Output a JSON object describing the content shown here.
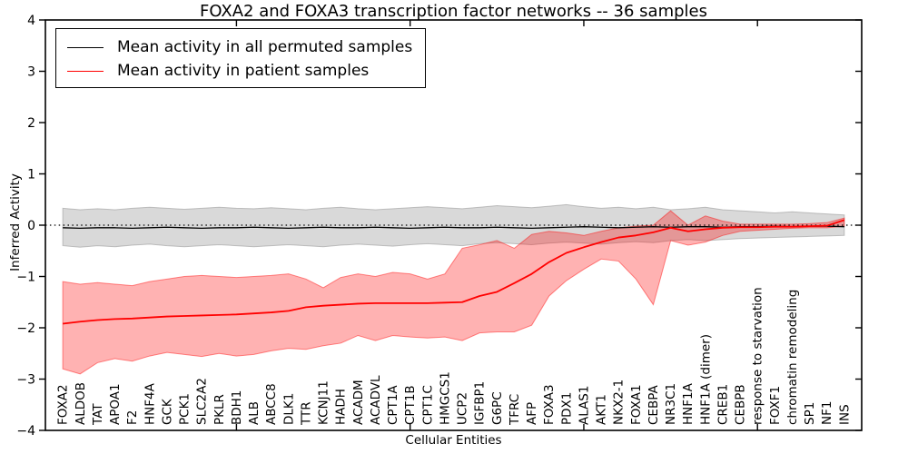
{
  "chart_data": {
    "type": "line",
    "title": "FOXA2 and FOXA3 transcription factor networks -- 36 samples",
    "xlabel": "Cellular Entities",
    "ylabel": "Inferred Activity",
    "ylim": [
      -4,
      4
    ],
    "xlim_points": 46,
    "grid": false,
    "legend_position": "upper left",
    "x_tick_rotation": 90,
    "reference_line": {
      "y": 0,
      "style": "dotted",
      "color": "#000000"
    },
    "yticks": [
      {
        "v": -4,
        "label": "−4"
      },
      {
        "v": -3,
        "label": "−3"
      },
      {
        "v": -2,
        "label": "−2"
      },
      {
        "v": -1,
        "label": "−1"
      },
      {
        "v": 0,
        "label": "0"
      },
      {
        "v": 1,
        "label": "1"
      },
      {
        "v": 2,
        "label": "2"
      },
      {
        "v": 3,
        "label": "3"
      },
      {
        "v": 4,
        "label": "4"
      }
    ],
    "categories": [
      "FOXA2",
      "ALDOB",
      "TAT",
      "APOA1",
      "F2",
      "HNF4A",
      "GCK",
      "PCK1",
      "SLC2A2",
      "PKLR",
      "BDH1",
      "ALB",
      "ABCC8",
      "DLK1",
      "TTR",
      "KCNJ11",
      "HADH",
      "ACADM",
      "ACADVL",
      "CPT1A",
      "CPT1B",
      "CPT1C",
      "HMGCS1",
      "UCP2",
      "IGFBP1",
      "G6PC",
      "TFRC",
      "AFP",
      "FOXA3",
      "PDX1",
      "ALAS1",
      "AKT1",
      "NKX2-1",
      "FOXA1",
      "CEBPA",
      "NR3C1",
      "HNF1A",
      "HNF1A (dimer)",
      "CREB1",
      "CEBPB",
      "response to starvation",
      "FOXF1",
      "chromatin remodeling",
      "SP1",
      "NF1",
      "INS"
    ],
    "series": [
      {
        "name": "Mean activity in all permuted samples",
        "color": "#000000",
        "line_width": 1.3,
        "band_color": "rgba(128,128,128,0.30)",
        "band_edge_color": "rgba(128,128,128,0.45)",
        "values": [
          -0.05,
          -0.06,
          -0.05,
          -0.05,
          -0.06,
          -0.05,
          -0.04,
          -0.05,
          -0.06,
          -0.05,
          -0.05,
          -0.04,
          -0.05,
          -0.06,
          -0.05,
          -0.04,
          -0.05,
          -0.05,
          -0.04,
          -0.05,
          -0.06,
          -0.05,
          -0.04,
          -0.05,
          -0.05,
          -0.04,
          -0.05,
          -0.06,
          -0.05,
          -0.04,
          -0.03,
          -0.04,
          -0.05,
          -0.04,
          -0.03,
          -0.04,
          -0.03,
          -0.03,
          -0.04,
          -0.03,
          -0.03,
          -0.02,
          -0.03,
          -0.02,
          -0.02,
          -0.03
        ],
        "band_high": [
          0.33,
          0.3,
          0.32,
          0.3,
          0.33,
          0.35,
          0.33,
          0.31,
          0.33,
          0.35,
          0.33,
          0.32,
          0.34,
          0.32,
          0.3,
          0.33,
          0.35,
          0.32,
          0.3,
          0.32,
          0.34,
          0.36,
          0.34,
          0.32,
          0.35,
          0.38,
          0.36,
          0.34,
          0.37,
          0.4,
          0.36,
          0.33,
          0.35,
          0.32,
          0.35,
          0.3,
          0.32,
          0.35,
          0.3,
          0.28,
          0.26,
          0.24,
          0.26,
          0.24,
          0.22,
          0.2
        ],
        "band_low": [
          -0.4,
          -0.43,
          -0.4,
          -0.42,
          -0.39,
          -0.37,
          -0.4,
          -0.42,
          -0.4,
          -0.38,
          -0.4,
          -0.42,
          -0.4,
          -0.38,
          -0.4,
          -0.42,
          -0.39,
          -0.37,
          -0.39,
          -0.41,
          -0.38,
          -0.36,
          -0.38,
          -0.4,
          -0.36,
          -0.34,
          -0.36,
          -0.38,
          -0.35,
          -0.33,
          -0.35,
          -0.37,
          -0.34,
          -0.32,
          -0.34,
          -0.3,
          -0.28,
          -0.3,
          -0.28,
          -0.26,
          -0.25,
          -0.24,
          -0.23,
          -0.22,
          -0.21,
          -0.2
        ]
      },
      {
        "name": "Mean activity in patient samples",
        "color": "#ff0000",
        "line_width": 1.8,
        "band_color": "rgba(255,0,0,0.30)",
        "band_edge_color": "rgba(255,0,0,0.45)",
        "values": [
          -1.92,
          -1.88,
          -1.85,
          -1.83,
          -1.82,
          -1.8,
          -1.78,
          -1.77,
          -1.76,
          -1.75,
          -1.74,
          -1.72,
          -1.7,
          -1.67,
          -1.6,
          -1.57,
          -1.55,
          -1.53,
          -1.52,
          -1.52,
          -1.52,
          -1.52,
          -1.51,
          -1.5,
          -1.38,
          -1.3,
          -1.13,
          -0.95,
          -0.72,
          -0.54,
          -0.43,
          -0.33,
          -0.24,
          -0.2,
          -0.14,
          -0.05,
          -0.12,
          -0.08,
          -0.05,
          -0.04,
          -0.04,
          -0.03,
          -0.03,
          -0.02,
          -0.01,
          0.1
        ],
        "band_high": [
          -1.1,
          -1.15,
          -1.12,
          -1.15,
          -1.18,
          -1.1,
          -1.05,
          -1.0,
          -0.98,
          -1.0,
          -1.02,
          -1.0,
          -0.98,
          -0.95,
          -1.05,
          -1.22,
          -1.02,
          -0.95,
          -1.0,
          -0.92,
          -0.95,
          -1.05,
          -0.95,
          -0.45,
          -0.38,
          -0.3,
          -0.45,
          -0.18,
          -0.12,
          -0.15,
          -0.2,
          -0.12,
          -0.05,
          -0.02,
          0.0,
          0.28,
          0.0,
          0.18,
          0.08,
          0.02,
          0.02,
          0.02,
          0.02,
          0.03,
          0.05,
          0.14
        ],
        "band_low": [
          -2.8,
          -2.9,
          -2.68,
          -2.6,
          -2.65,
          -2.55,
          -2.48,
          -2.52,
          -2.56,
          -2.5,
          -2.55,
          -2.52,
          -2.45,
          -2.4,
          -2.42,
          -2.35,
          -2.3,
          -2.15,
          -2.25,
          -2.15,
          -2.18,
          -2.2,
          -2.18,
          -2.25,
          -2.1,
          -2.08,
          -2.08,
          -1.95,
          -1.38,
          -1.08,
          -0.86,
          -0.66,
          -0.7,
          -1.05,
          -1.55,
          -0.3,
          -0.39,
          -0.33,
          -0.2,
          -0.12,
          -0.1,
          -0.08,
          -0.06,
          -0.05,
          -0.05,
          -0.02
        ]
      }
    ]
  }
}
